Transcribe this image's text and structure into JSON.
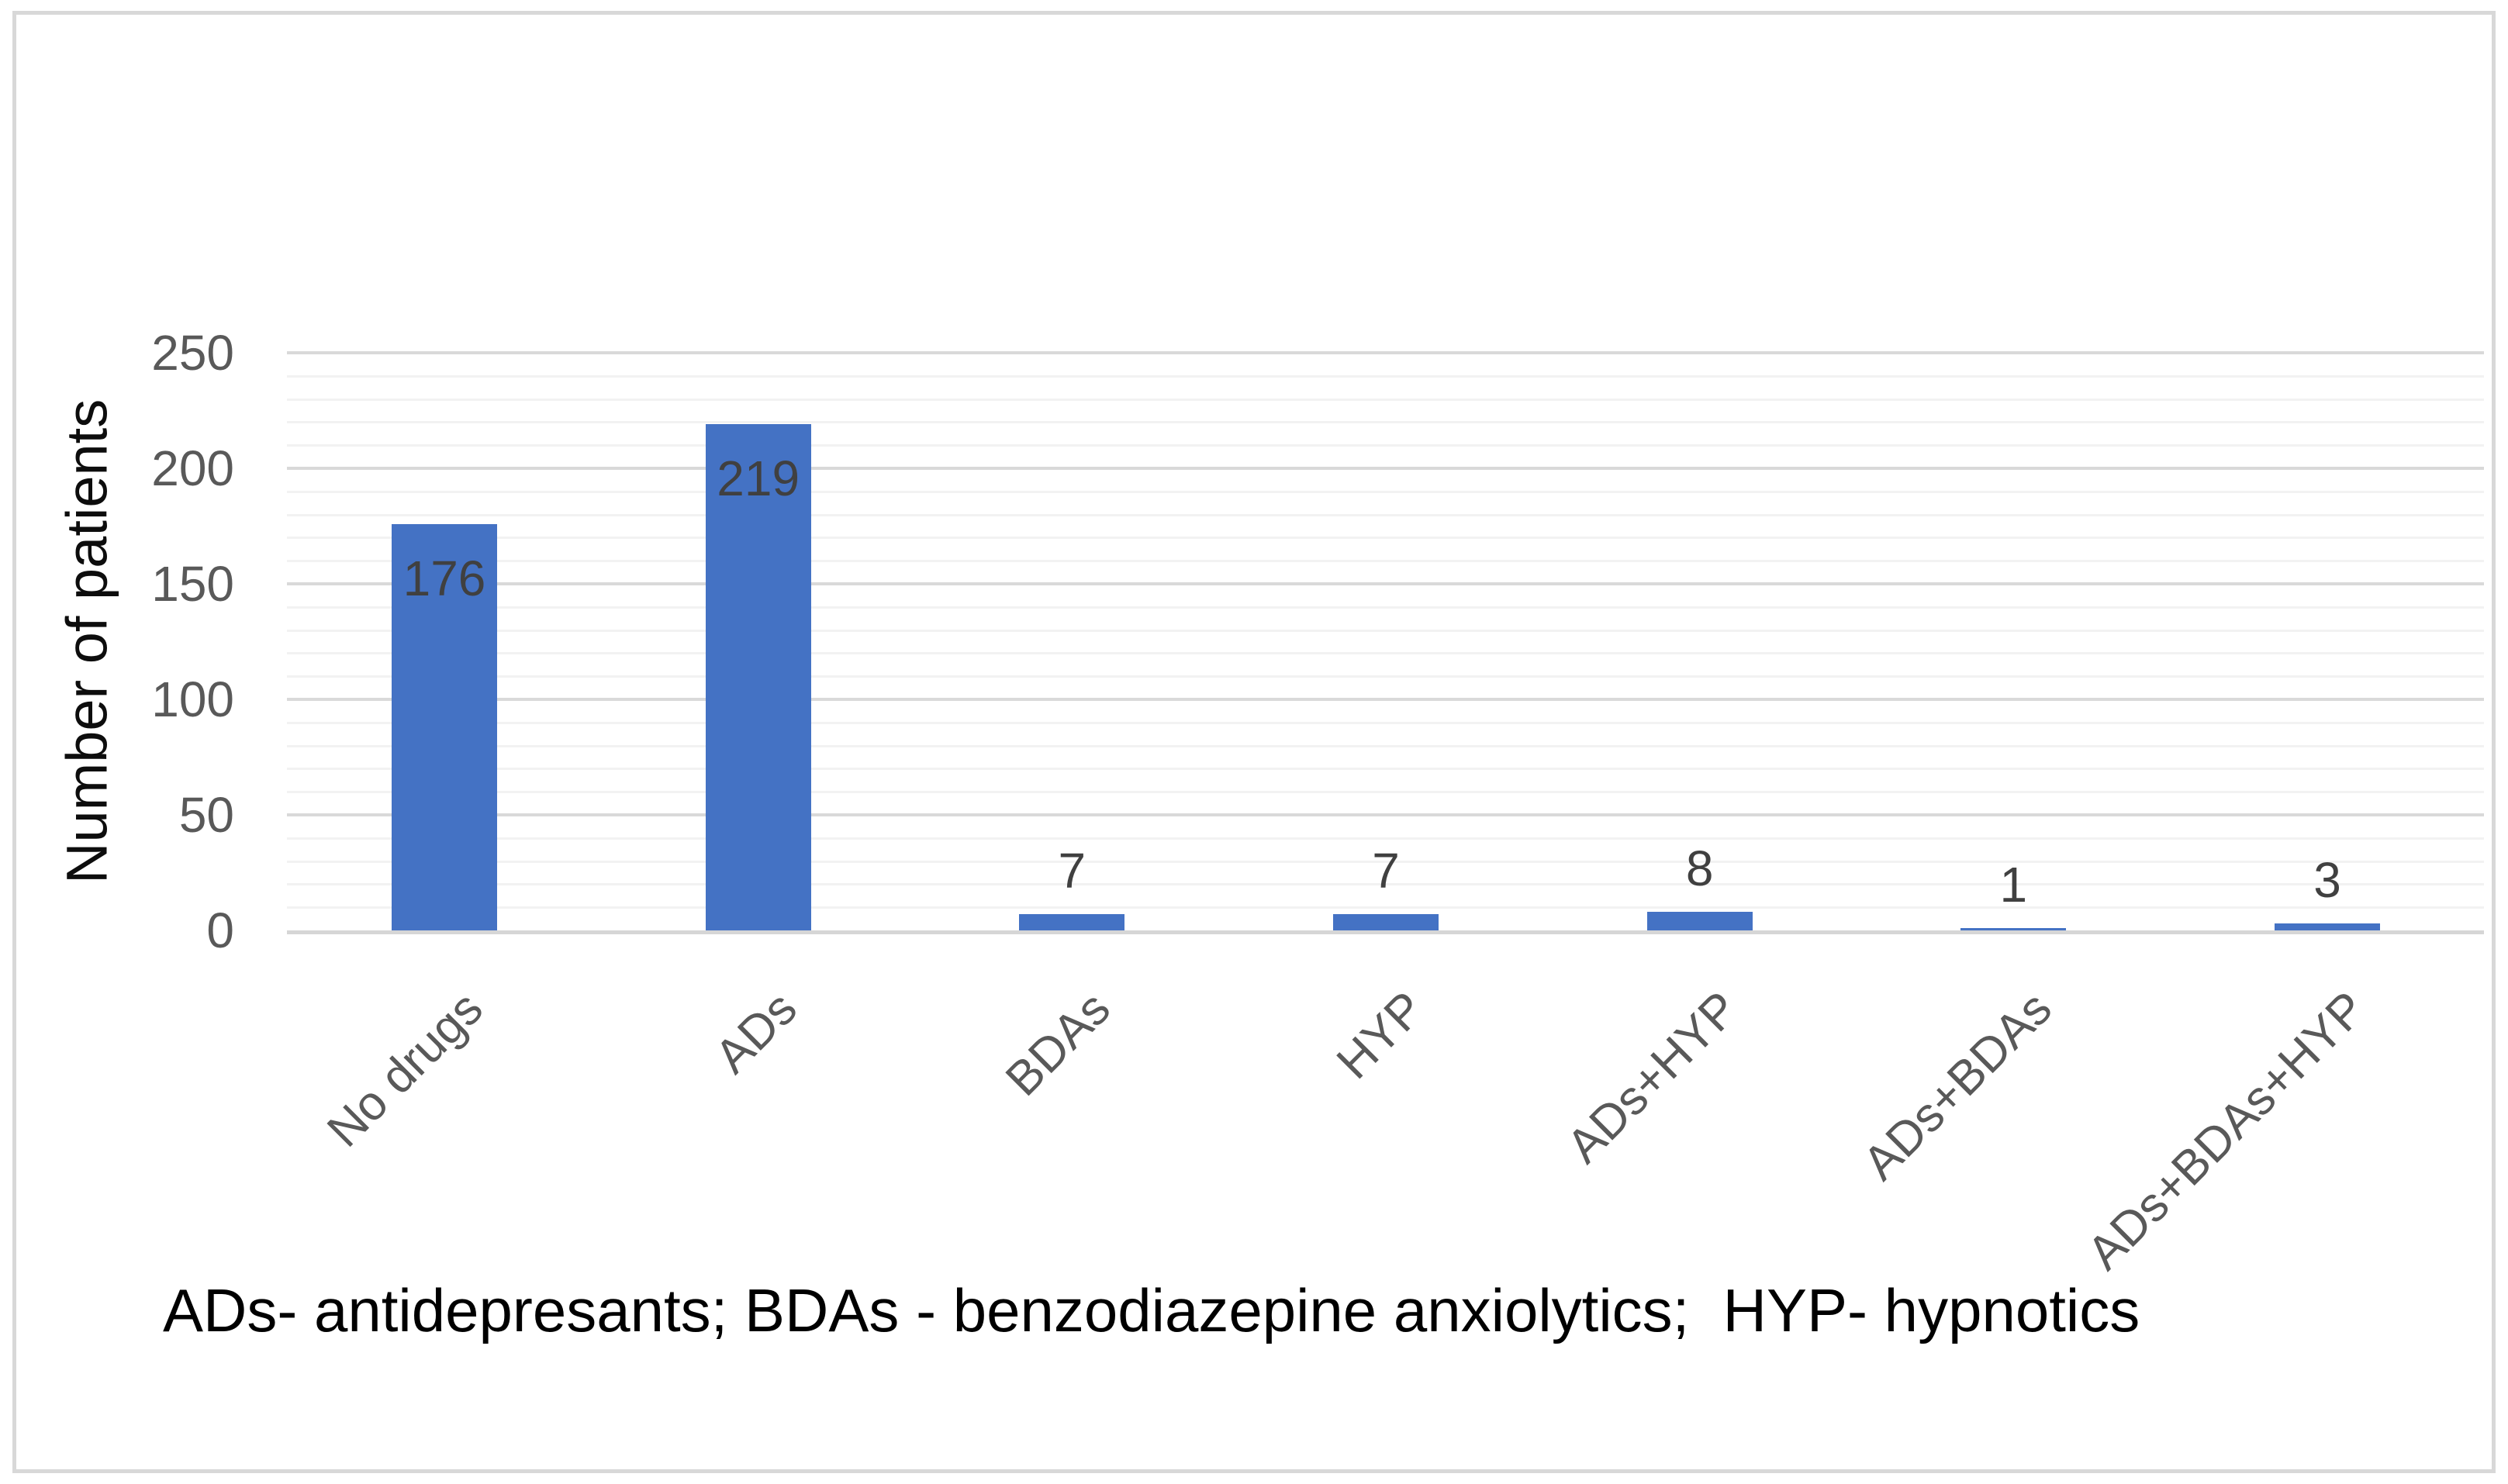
{
  "chart_data": {
    "type": "bar",
    "title": "",
    "categories": [
      "No drugs",
      "ADs",
      "BDAs",
      "HYP",
      "ADs+HYP",
      "ADs+BDAs",
      "ADs+BDAs+HYP"
    ],
    "values": [
      176,
      219,
      7,
      7,
      8,
      1,
      3
    ],
    "xlabel": "",
    "ylabel": "Number of patients",
    "caption": "ADs- antidepresants; BDAs - benzodiazepine anxiolytics;  HYP- hypnotics",
    "ylim": [
      0,
      250
    ],
    "yticks": [
      0,
      50,
      100,
      150,
      200,
      250
    ],
    "major_gridline_step": 50,
    "minor_gridline_step": 10,
    "grid": "on",
    "legend_position": "none",
    "data_labels": "shown",
    "colors": {
      "bar": "#4472C4",
      "gridline_major": "#D9D9D9",
      "gridline_minor": "#F2F2F2",
      "axis_line": "#D6D6D6",
      "tick_label_text": "#595959",
      "data_label_text": "#404040",
      "category_label_text": "#595959",
      "axis_title_text": "#0D0D0D",
      "caption_text": "#000000",
      "frame_border": "#D8D8D8",
      "background": "#FFFFFF"
    }
  }
}
